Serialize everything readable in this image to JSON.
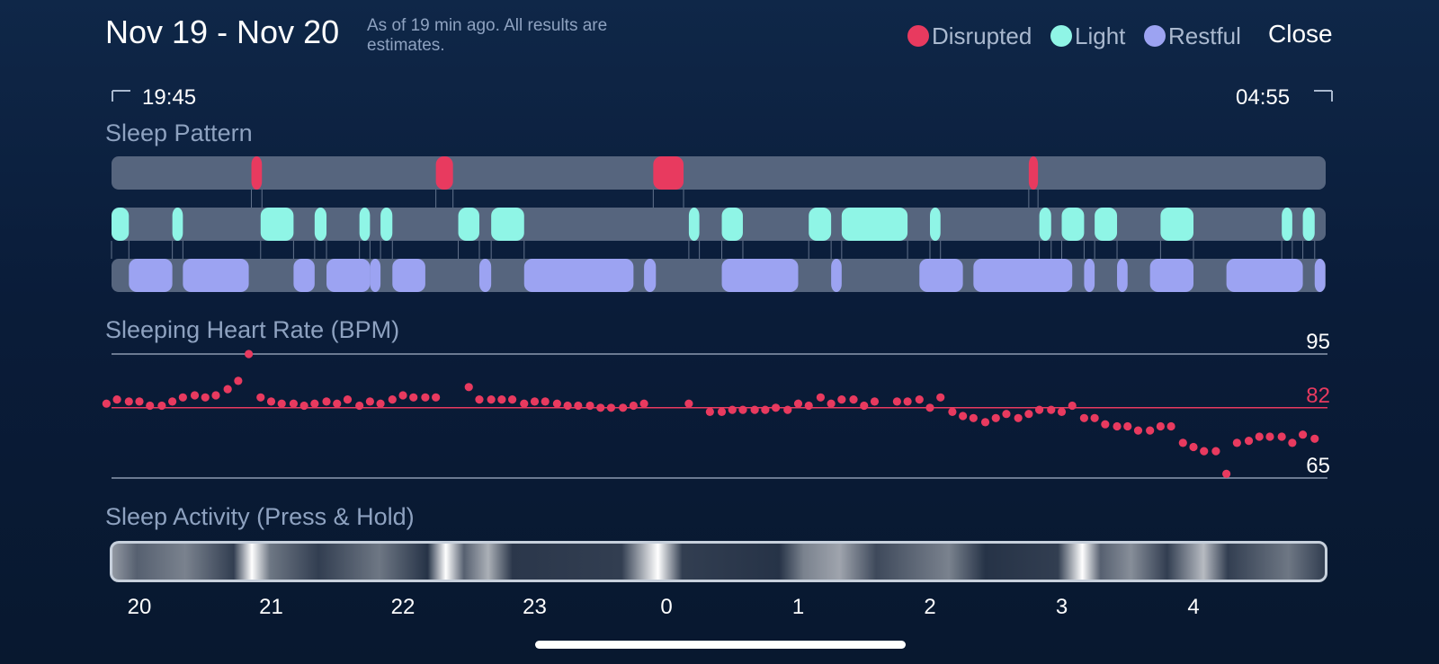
{
  "header": {
    "title": "Nov 19 - Nov 20",
    "subtitle": "As of 19 min ago. All results are estimates.",
    "close_label": "Close"
  },
  "legend": [
    {
      "label": "Disrupted",
      "color": "#e83a5f"
    },
    {
      "label": "Light",
      "color": "#8ff5e6"
    },
    {
      "label": "Restful",
      "color": "#9ca3f2"
    }
  ],
  "time_range": {
    "start": "19:45",
    "end": "04:55"
  },
  "sections": {
    "sleep_pattern": "Sleep Pattern",
    "heart_rate": "Sleeping Heart Rate (BPM)",
    "activity": "Sleep Activity (Press & Hold)"
  },
  "sleep_pattern": {
    "track_color": "#56657e",
    "disrupted": [
      [
        20.85,
        20.93
      ],
      [
        22.25,
        22.38
      ],
      [
        23.9,
        24.13
      ],
      [
        26.75,
        26.82
      ]
    ],
    "light": [
      [
        19.75,
        19.92
      ],
      [
        20.25,
        20.33
      ],
      [
        20.92,
        21.17
      ],
      [
        21.33,
        21.42
      ],
      [
        21.67,
        21.75
      ],
      [
        21.83,
        21.92
      ],
      [
        22.42,
        22.58
      ],
      [
        22.67,
        22.92
      ],
      [
        24.17,
        24.25
      ],
      [
        24.42,
        24.58
      ],
      [
        25.08,
        25.25
      ],
      [
        25.33,
        25.83
      ],
      [
        26.0,
        26.08
      ],
      [
        26.83,
        26.92
      ],
      [
        27.0,
        27.17
      ],
      [
        27.25,
        27.42
      ],
      [
        27.75,
        28.0
      ],
      [
        28.67,
        28.75
      ],
      [
        28.83,
        28.92
      ]
    ],
    "restful": [
      [
        19.92,
        20.25
      ],
      [
        20.33,
        20.83
      ],
      [
        21.17,
        21.33
      ],
      [
        21.42,
        21.75
      ],
      [
        21.75,
        21.83
      ],
      [
        21.92,
        22.17
      ],
      [
        22.58,
        22.67
      ],
      [
        22.92,
        23.75
      ],
      [
        23.83,
        23.92
      ],
      [
        24.42,
        25.0
      ],
      [
        25.25,
        25.33
      ],
      [
        25.92,
        26.25
      ],
      [
        26.33,
        27.08
      ],
      [
        27.17,
        27.25
      ],
      [
        27.42,
        27.5
      ],
      [
        27.67,
        28.0
      ],
      [
        28.25,
        28.83
      ],
      [
        28.92,
        29.0
      ]
    ]
  },
  "chart_data": {
    "type": "scatter",
    "title": "Sleeping Heart Rate (BPM)",
    "xlabel": "",
    "ylabel": "",
    "y_reference_lines": [
      95,
      82,
      65
    ],
    "average": 82,
    "xlim": [
      19.75,
      28.92
    ],
    "ylim": [
      65,
      95
    ],
    "x_ticks": [
      "20",
      "21",
      "22",
      "23",
      "0",
      "1",
      "2",
      "3",
      "4"
    ],
    "series": [
      {
        "color": "#e83a5f",
        "x": [
          19.75,
          19.83,
          19.92,
          20.0,
          20.08,
          20.17,
          20.25,
          20.33,
          20.42,
          20.5,
          20.58,
          20.67,
          20.75,
          20.83,
          20.92,
          21.0,
          21.08,
          21.17,
          21.25,
          21.33,
          21.42,
          21.5,
          21.58,
          21.67,
          21.75,
          21.83,
          21.92,
          22.0,
          22.08,
          22.17,
          22.25,
          22.5,
          22.58,
          22.67,
          22.75,
          22.83,
          22.92,
          23.0,
          23.08,
          23.17,
          23.25,
          23.33,
          23.42,
          23.5,
          23.58,
          23.67,
          23.75,
          23.83,
          24.17,
          24.33,
          24.42,
          24.5,
          24.58,
          24.67,
          24.75,
          24.83,
          24.92,
          25.0,
          25.08,
          25.17,
          25.25,
          25.33,
          25.42,
          25.5,
          25.58,
          25.75,
          25.83,
          25.92,
          26.0,
          26.08,
          26.17,
          26.25,
          26.33,
          26.42,
          26.5,
          26.58,
          26.67,
          26.75,
          26.83,
          26.92,
          27.0,
          27.08,
          27.17,
          27.25,
          27.33,
          27.42,
          27.5,
          27.58,
          27.67,
          27.75,
          27.83,
          27.92,
          28.0,
          28.08,
          28.17,
          28.25,
          28.33,
          28.42,
          28.5,
          28.58,
          28.67,
          28.75,
          28.83,
          28.92
        ],
        "y": [
          83,
          84,
          83.5,
          83.5,
          82.5,
          82.5,
          83.5,
          84.5,
          85,
          84.5,
          85,
          86.5,
          88.5,
          95,
          84.5,
          83.5,
          83,
          83,
          82.5,
          83,
          83.5,
          83,
          84,
          82.5,
          83.5,
          83,
          84,
          85,
          84.5,
          84.5,
          84.5,
          87,
          84,
          84,
          84,
          84,
          83,
          83.5,
          83.5,
          83,
          82.5,
          82.5,
          82.5,
          82,
          82,
          82,
          82.5,
          83,
          83,
          81,
          81,
          81.5,
          81.5,
          81.5,
          81.5,
          82,
          81.5,
          83,
          82.5,
          84.5,
          83,
          84,
          84,
          82.5,
          83.5,
          83.5,
          83.5,
          84,
          82,
          84.5,
          81,
          80,
          79.5,
          78.5,
          79.5,
          80.5,
          79.5,
          80.5,
          81.5,
          81.5,
          81,
          82.5,
          79.5,
          79.5,
          78,
          77.5,
          77.5,
          76.5,
          76.5,
          77.5,
          77.5,
          73.5,
          72.5,
          71.5,
          71.5,
          66,
          73.5,
          74,
          75,
          75,
          75,
          73.5,
          75.5,
          74.5
        ]
      }
    ]
  },
  "activity": {
    "stops": [
      {
        "pos": 0.0,
        "v": 0.55
      },
      {
        "pos": 0.02,
        "v": 0.3
      },
      {
        "pos": 0.06,
        "v": 0.45
      },
      {
        "pos": 0.1,
        "v": 0.15
      },
      {
        "pos": 0.115,
        "v": 1.0
      },
      {
        "pos": 0.13,
        "v": 0.4
      },
      {
        "pos": 0.17,
        "v": 0.15
      },
      {
        "pos": 0.22,
        "v": 0.4
      },
      {
        "pos": 0.26,
        "v": 0.1
      },
      {
        "pos": 0.275,
        "v": 1.0
      },
      {
        "pos": 0.29,
        "v": 0.3
      },
      {
        "pos": 0.31,
        "v": 0.65
      },
      {
        "pos": 0.33,
        "v": 0.12
      },
      {
        "pos": 0.42,
        "v": 0.15
      },
      {
        "pos": 0.45,
        "v": 1.0
      },
      {
        "pos": 0.47,
        "v": 0.15
      },
      {
        "pos": 0.55,
        "v": 0.1
      },
      {
        "pos": 0.57,
        "v": 0.45
      },
      {
        "pos": 0.6,
        "v": 0.6
      },
      {
        "pos": 0.63,
        "v": 0.2
      },
      {
        "pos": 0.69,
        "v": 0.45
      },
      {
        "pos": 0.72,
        "v": 0.1
      },
      {
        "pos": 0.78,
        "v": 0.15
      },
      {
        "pos": 0.8,
        "v": 1.0
      },
      {
        "pos": 0.815,
        "v": 0.3
      },
      {
        "pos": 0.84,
        "v": 0.5
      },
      {
        "pos": 0.87,
        "v": 0.15
      },
      {
        "pos": 0.9,
        "v": 0.7
      },
      {
        "pos": 0.92,
        "v": 0.15
      },
      {
        "pos": 0.97,
        "v": 0.4
      },
      {
        "pos": 1.0,
        "v": 0.15
      }
    ]
  },
  "ticks": [
    "20",
    "21",
    "22",
    "23",
    "0",
    "1",
    "2",
    "3",
    "4"
  ],
  "bracket_glyph_left": "⌐",
  "bracket_glyph_right": "¬"
}
